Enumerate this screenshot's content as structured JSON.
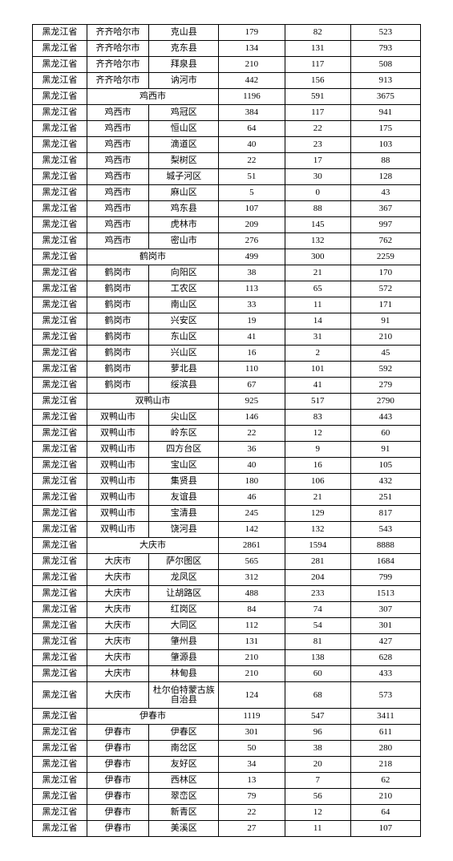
{
  "rows": [
    [
      "黑龙江省",
      "齐齐哈尔市",
      "克山县",
      "179",
      "82",
      "523"
    ],
    [
      "黑龙江省",
      "齐齐哈尔市",
      "克东县",
      "134",
      "131",
      "793"
    ],
    [
      "黑龙江省",
      "齐齐哈尔市",
      "拜泉县",
      "210",
      "117",
      "508"
    ],
    [
      "黑龙江省",
      "齐齐哈尔市",
      "讷河市",
      "442",
      "156",
      "913"
    ],
    [
      "黑龙江省",
      "鸡西市",
      "",
      "1196",
      "591",
      "3675"
    ],
    [
      "黑龙江省",
      "鸡西市",
      "鸡冠区",
      "384",
      "117",
      "941"
    ],
    [
      "黑龙江省",
      "鸡西市",
      "恒山区",
      "64",
      "22",
      "175"
    ],
    [
      "黑龙江省",
      "鸡西市",
      "滴道区",
      "40",
      "23",
      "103"
    ],
    [
      "黑龙江省",
      "鸡西市",
      "梨树区",
      "22",
      "17",
      "88"
    ],
    [
      "黑龙江省",
      "鸡西市",
      "城子河区",
      "51",
      "30",
      "128"
    ],
    [
      "黑龙江省",
      "鸡西市",
      "麻山区",
      "5",
      "0",
      "43"
    ],
    [
      "黑龙江省",
      "鸡西市",
      "鸡东县",
      "107",
      "88",
      "367"
    ],
    [
      "黑龙江省",
      "鸡西市",
      "虎林市",
      "209",
      "145",
      "997"
    ],
    [
      "黑龙江省",
      "鸡西市",
      "密山市",
      "276",
      "132",
      "762"
    ],
    [
      "黑龙江省",
      "鹤岗市",
      "",
      "499",
      "300",
      "2259"
    ],
    [
      "黑龙江省",
      "鹤岗市",
      "向阳区",
      "38",
      "21",
      "170"
    ],
    [
      "黑龙江省",
      "鹤岗市",
      "工农区",
      "113",
      "65",
      "572"
    ],
    [
      "黑龙江省",
      "鹤岗市",
      "南山区",
      "33",
      "11",
      "171"
    ],
    [
      "黑龙江省",
      "鹤岗市",
      "兴安区",
      "19",
      "14",
      "91"
    ],
    [
      "黑龙江省",
      "鹤岗市",
      "东山区",
      "41",
      "31",
      "210"
    ],
    [
      "黑龙江省",
      "鹤岗市",
      "兴山区",
      "16",
      "2",
      "45"
    ],
    [
      "黑龙江省",
      "鹤岗市",
      "萝北县",
      "110",
      "101",
      "592"
    ],
    [
      "黑龙江省",
      "鹤岗市",
      "绥滨县",
      "67",
      "41",
      "279"
    ],
    [
      "黑龙江省",
      "双鸭山市",
      "",
      "925",
      "517",
      "2790"
    ],
    [
      "黑龙江省",
      "双鸭山市",
      "尖山区",
      "146",
      "83",
      "443"
    ],
    [
      "黑龙江省",
      "双鸭山市",
      "岭东区",
      "22",
      "12",
      "60"
    ],
    [
      "黑龙江省",
      "双鸭山市",
      "四方台区",
      "36",
      "9",
      "91"
    ],
    [
      "黑龙江省",
      "双鸭山市",
      "宝山区",
      "40",
      "16",
      "105"
    ],
    [
      "黑龙江省",
      "双鸭山市",
      "集贤县",
      "180",
      "106",
      "432"
    ],
    [
      "黑龙江省",
      "双鸭山市",
      "友谊县",
      "46",
      "21",
      "251"
    ],
    [
      "黑龙江省",
      "双鸭山市",
      "宝清县",
      "245",
      "129",
      "817"
    ],
    [
      "黑龙江省",
      "双鸭山市",
      "饶河县",
      "142",
      "132",
      "543"
    ],
    [
      "黑龙江省",
      "大庆市",
      "",
      "2861",
      "1594",
      "8888"
    ],
    [
      "黑龙江省",
      "大庆市",
      "萨尔图区",
      "565",
      "281",
      "1684"
    ],
    [
      "黑龙江省",
      "大庆市",
      "龙凤区",
      "312",
      "204",
      "799"
    ],
    [
      "黑龙江省",
      "大庆市",
      "让胡路区",
      "488",
      "233",
      "1513"
    ],
    [
      "黑龙江省",
      "大庆市",
      "红岗区",
      "84",
      "74",
      "307"
    ],
    [
      "黑龙江省",
      "大庆市",
      "大同区",
      "112",
      "54",
      "301"
    ],
    [
      "黑龙江省",
      "大庆市",
      "肇州县",
      "131",
      "81",
      "427"
    ],
    [
      "黑龙江省",
      "大庆市",
      "肇源县",
      "210",
      "138",
      "628"
    ],
    [
      "黑龙江省",
      "大庆市",
      "林甸县",
      "210",
      "60",
      "433"
    ],
    [
      "黑龙江省",
      "大庆市",
      "杜尔伯特蒙古族自治县",
      "124",
      "68",
      "573"
    ],
    [
      "黑龙江省",
      "伊春市",
      "",
      "1119",
      "547",
      "3411"
    ],
    [
      "黑龙江省",
      "伊春市",
      "伊春区",
      "301",
      "96",
      "611"
    ],
    [
      "黑龙江省",
      "伊春市",
      "南岔区",
      "50",
      "38",
      "280"
    ],
    [
      "黑龙江省",
      "伊春市",
      "友好区",
      "34",
      "20",
      "218"
    ],
    [
      "黑龙江省",
      "伊春市",
      "西林区",
      "13",
      "7",
      "62"
    ],
    [
      "黑龙江省",
      "伊春市",
      "翠峦区",
      "79",
      "56",
      "210"
    ],
    [
      "黑龙江省",
      "伊春市",
      "新青区",
      "22",
      "12",
      "64"
    ],
    [
      "黑龙江省",
      "伊春市",
      "美溪区",
      "27",
      "11",
      "107"
    ]
  ],
  "mergeRows": [
    4,
    14,
    23,
    32,
    42
  ],
  "multilineRow": 41
}
